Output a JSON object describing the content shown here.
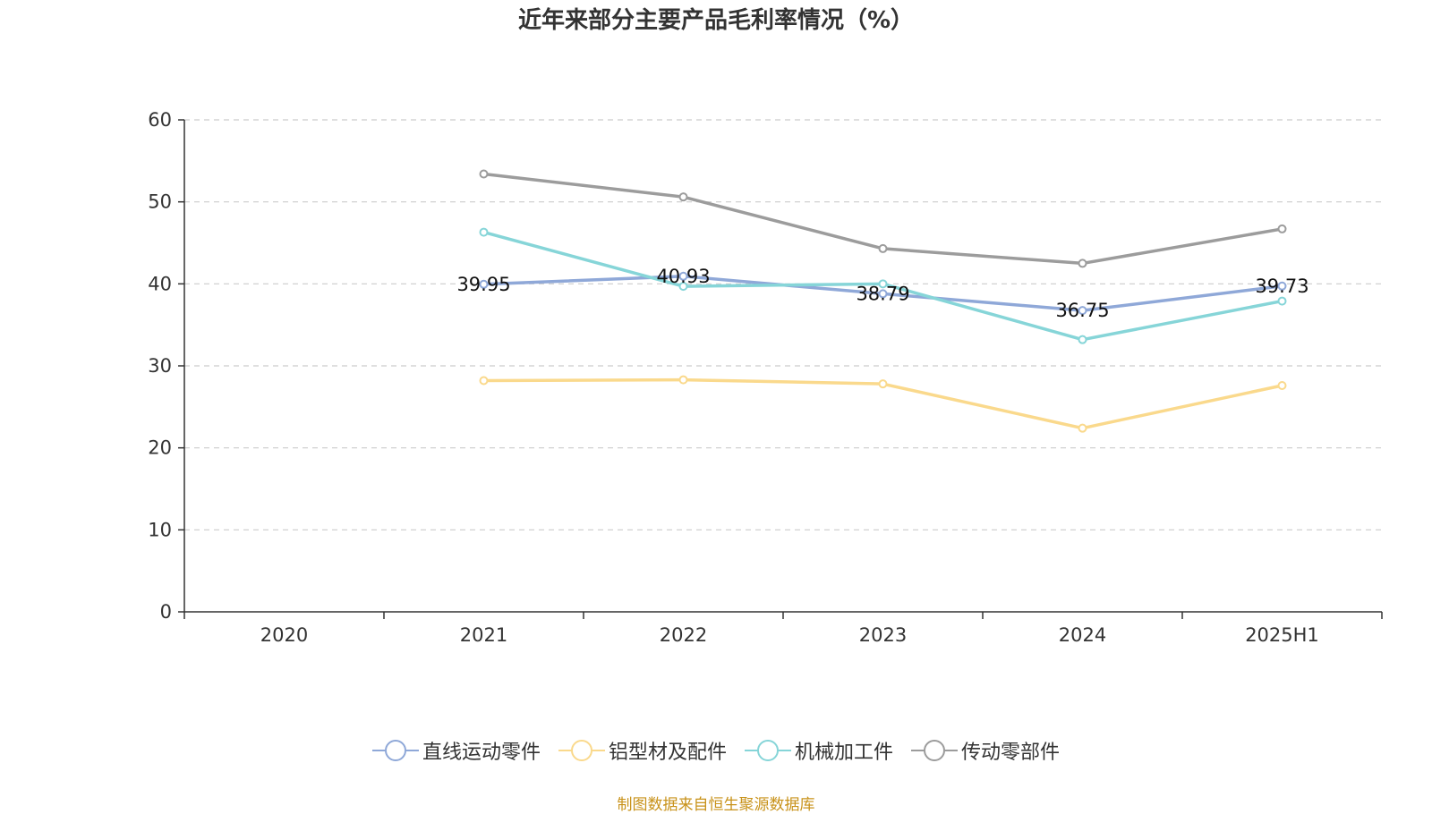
{
  "chart_data": {
    "type": "line",
    "title": "近年来部分主要产品毛利率情况（%）",
    "categories": [
      "2020",
      "2021",
      "2022",
      "2023",
      "2024",
      "2025H1"
    ],
    "ylim": [
      0,
      60
    ],
    "yticks": [
      0,
      10,
      20,
      30,
      40,
      50,
      60
    ],
    "grid": true,
    "legend_position": "bottom",
    "series": [
      {
        "name": "直线运动零件",
        "color": "#8fa8d8",
        "values": [
          null,
          39.95,
          40.93,
          38.79,
          36.75,
          39.73
        ],
        "show_labels": true
      },
      {
        "name": "铝型材及配件",
        "color": "#fad98c",
        "values": [
          null,
          28.2,
          28.3,
          27.8,
          22.4,
          27.6
        ],
        "show_labels": false
      },
      {
        "name": "机械加工件",
        "color": "#86d5d8",
        "values": [
          null,
          46.3,
          39.7,
          40.0,
          33.2,
          37.9
        ],
        "show_labels": false
      },
      {
        "name": "传动零部件",
        "color": "#9c9c9c",
        "values": [
          null,
          53.4,
          50.6,
          44.3,
          42.5,
          46.7
        ],
        "show_labels": false
      }
    ]
  },
  "source_note": "制图数据来自恒生聚源数据库"
}
